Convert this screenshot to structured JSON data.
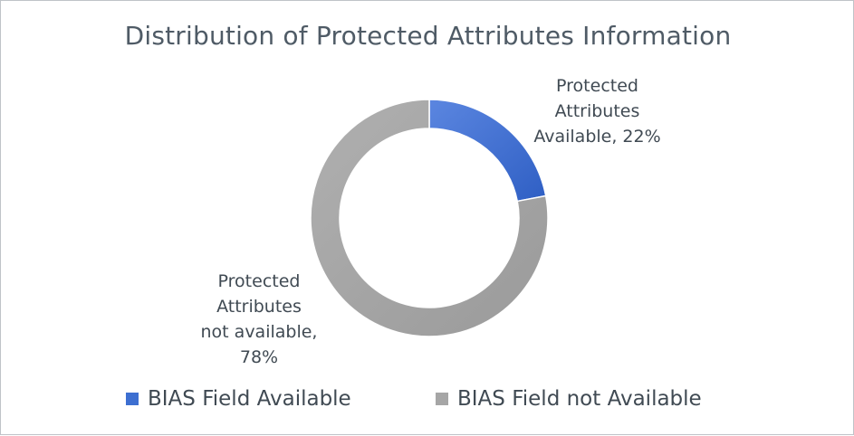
{
  "chart_data": {
    "type": "pie",
    "donut": true,
    "title": "Distribution of Protected Attributes Information",
    "categories": [
      "BIAS Field Available",
      "BIAS Field not Available"
    ],
    "values": [
      22,
      78
    ],
    "unit": "%",
    "colors": [
      "#3d6fd1",
      "#a6a6a6"
    ],
    "data_labels": [
      {
        "lines": [
          "Protected",
          "Attributes",
          "Available, 22%"
        ]
      },
      {
        "lines": [
          "Protected",
          "Attributes",
          "not available,",
          "78%"
        ]
      }
    ],
    "legend": {
      "position": "bottom",
      "entries": [
        "BIAS Field Available",
        "BIAS Field not Available"
      ]
    }
  }
}
